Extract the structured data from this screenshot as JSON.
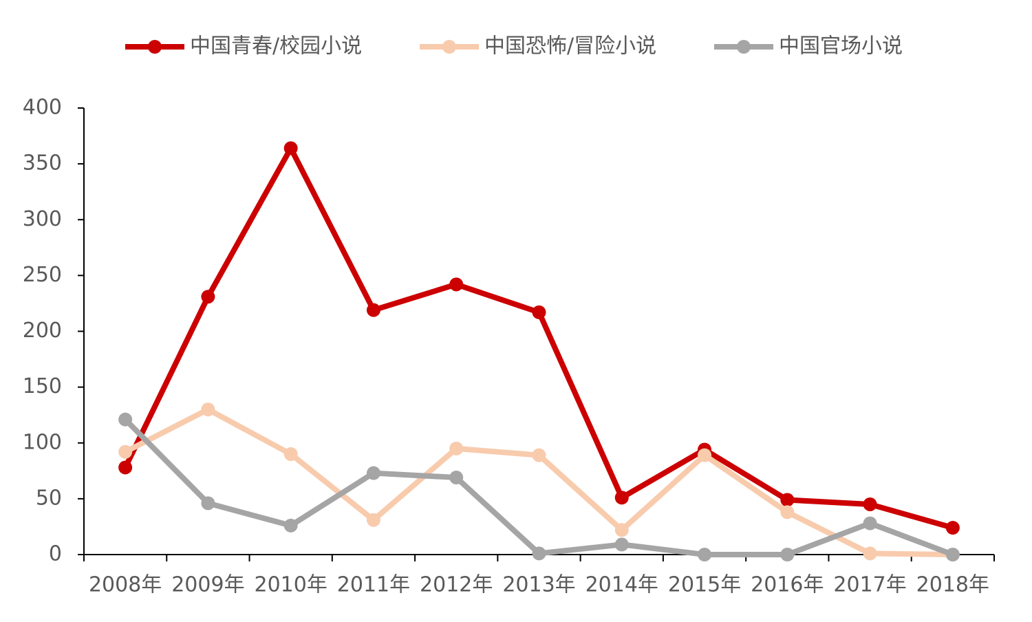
{
  "chart_data": {
    "type": "line",
    "categories": [
      "2008年",
      "2009年",
      "2010年",
      "2011年",
      "2012年",
      "2013年",
      "2014年",
      "2015年",
      "2016年",
      "2017年",
      "2018年"
    ],
    "series": [
      {
        "name": "中国青春/校园小说",
        "color": "#cc0000",
        "values": [
          78,
          231,
          364,
          219,
          242,
          217,
          51,
          94,
          49,
          45,
          24
        ]
      },
      {
        "name": "中国恐怖/冒险小说",
        "color": "#f8cbad",
        "values": [
          92,
          130,
          90,
          31,
          95,
          89,
          22,
          89,
          38,
          1,
          0
        ]
      },
      {
        "name": "中国官场小说",
        "color": "#a5a5a5",
        "values": [
          121,
          46,
          26,
          73,
          69,
          1,
          9,
          0,
          0,
          28,
          0
        ]
      }
    ],
    "ylim": [
      0,
      400
    ],
    "yticks": [
      0,
      50,
      100,
      150,
      200,
      250,
      300,
      350,
      400
    ],
    "legend": "top"
  }
}
